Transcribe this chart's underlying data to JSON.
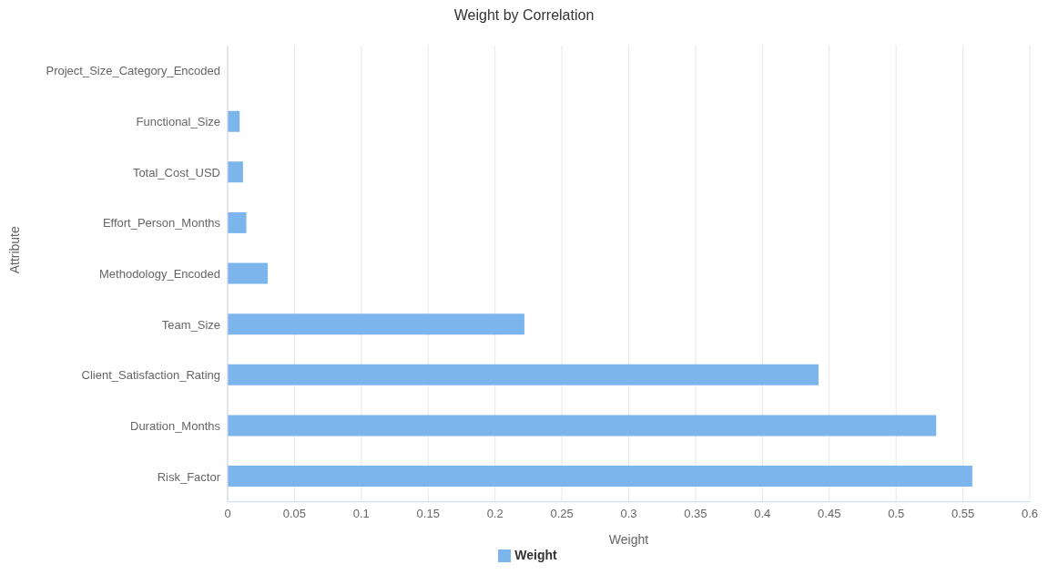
{
  "chart_data": {
    "type": "bar",
    "orientation": "horizontal",
    "title": "Weight by Correlation",
    "xlabel": "Weight",
    "ylabel": "Attribute",
    "categories": [
      "Project_Size_Category_Encoded",
      "Functional_Size",
      "Total_Cost_USD",
      "Effort_Person_Months",
      "Methodology_Encoded",
      "Team_Size",
      "Client_Satisfaction_Rating",
      "Duration_Months",
      "Risk_Factor"
    ],
    "series": [
      {
        "name": "Weight",
        "color": "#7cb5ec",
        "values": [
          0,
          0.009,
          0.0115,
          0.014,
          0.03,
          0.222,
          0.442,
          0.53,
          0.557
        ]
      }
    ],
    "xlim": [
      0,
      0.6
    ],
    "xticks": [
      0,
      0.05,
      0.1,
      0.15,
      0.2,
      0.25,
      0.3,
      0.35,
      0.4,
      0.45,
      0.5,
      0.55,
      0.6
    ],
    "grid": "x",
    "legend": "bottom"
  }
}
